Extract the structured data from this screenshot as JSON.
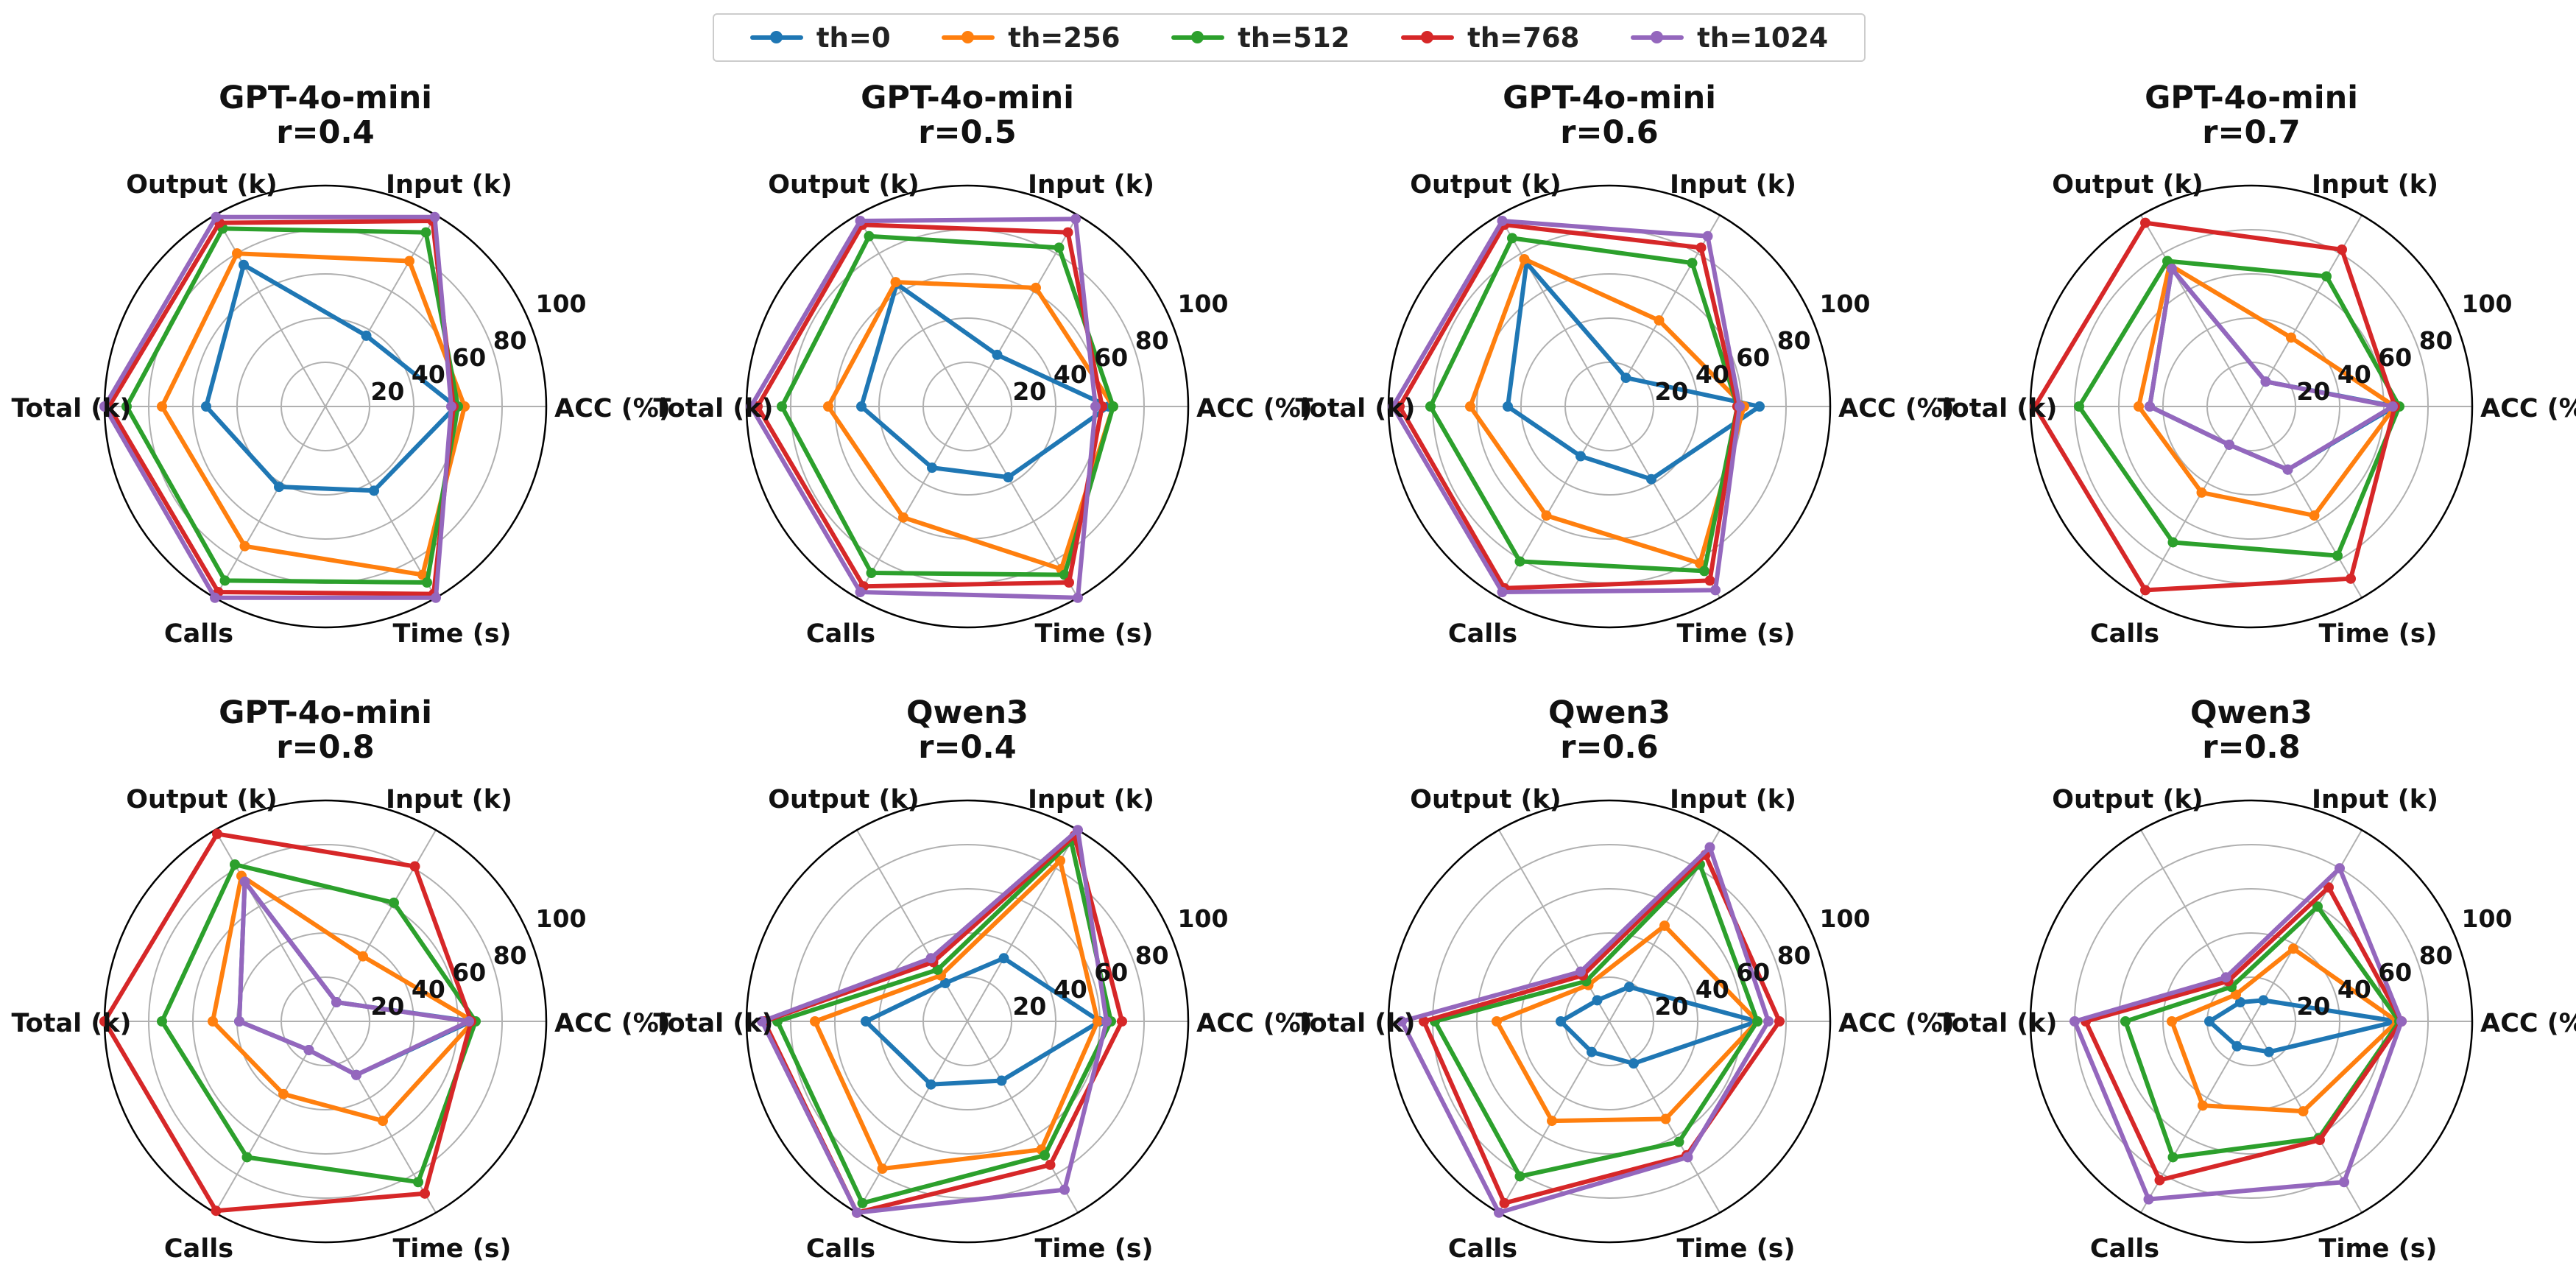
{
  "legend": {
    "items": [
      {
        "label": "th=0",
        "color": "#1f77b4"
      },
      {
        "label": "th=256",
        "color": "#ff7f0e"
      },
      {
        "label": "th=512",
        "color": "#2ca02c"
      },
      {
        "label": "th=768",
        "color": "#d62728"
      },
      {
        "label": "th=1024",
        "color": "#9467bd"
      }
    ]
  },
  "chart_data": {
    "type": "radar",
    "axes": [
      "ACC (%)",
      "Input (k)",
      "Output (k)",
      "Total (k)",
      "Calls",
      "Time (s)"
    ],
    "radial_ticks": [
      20,
      40,
      60,
      80,
      100
    ],
    "rlim": [
      0,
      100
    ],
    "series_names": [
      "th=0",
      "th=256",
      "th=512",
      "th=768",
      "th=1024"
    ],
    "colors": [
      "#1f77b4",
      "#ff7f0e",
      "#2ca02c",
      "#d62728",
      "#9467bd"
    ],
    "grid": true,
    "legend_position": "top-center",
    "subplots": [
      {
        "title": [
          "GPT-4o-mini",
          "r=0.4"
        ],
        "series": [
          {
            "name": "th=0",
            "values": [
              59,
              37,
              74,
              54,
              42,
              44
            ]
          },
          {
            "name": "th=256",
            "values": [
              63,
              76,
              80,
              74,
              73,
              88
            ]
          },
          {
            "name": "th=512",
            "values": [
              60,
              91,
              93,
              90,
              91,
              92
            ]
          },
          {
            "name": "th=768",
            "values": [
              58,
              97,
              96,
              98,
              97,
              98
            ]
          },
          {
            "name": "th=1024",
            "values": [
              57,
              99,
              99,
              100,
              100,
              100
            ]
          }
        ]
      },
      {
        "title": [
          "GPT-4o-mini",
          "r=0.5"
        ],
        "series": [
          {
            "name": "th=0",
            "values": [
              64,
              27,
              64,
              48,
              32,
              37
            ]
          },
          {
            "name": "th=256",
            "values": [
              66,
              62,
              65,
              63,
              58,
              85
            ]
          },
          {
            "name": "th=512",
            "values": [
              66,
              83,
              89,
              84,
              87,
              88
            ]
          },
          {
            "name": "th=768",
            "values": [
              61,
              91,
              95,
              95,
              94,
              92
            ]
          },
          {
            "name": "th=1024",
            "values": [
              58,
              98,
              97,
              98,
              97,
              100
            ]
          }
        ]
      },
      {
        "title": [
          "GPT-4o-mini",
          "r=0.6"
        ],
        "series": [
          {
            "name": "th=0",
            "values": [
              68,
              15,
              75,
              46,
              26,
              38
            ]
          },
          {
            "name": "th=256",
            "values": [
              61,
              45,
              77,
              63,
              57,
              82
            ]
          },
          {
            "name": "th=512",
            "values": [
              58,
              75,
              88,
              81,
              81,
              86
            ]
          },
          {
            "name": "th=768",
            "values": [
              58,
              83,
              95,
              95,
              95,
              91
            ]
          },
          {
            "name": "th=1024",
            "values": [
              59,
              89,
              97,
              98,
              97,
              96
            ]
          }
        ]
      },
      {
        "title": [
          "GPT-4o-mini",
          "r=0.7"
        ],
        "series": [
          {
            "name": "th=0",
            "values": [
              65,
              13,
              72,
              46,
              20,
              33
            ]
          },
          {
            "name": "th=256",
            "values": [
              65,
              36,
              74,
              51,
              45,
              57
            ]
          },
          {
            "name": "th=512",
            "values": [
              67,
              68,
              76,
              78,
              71,
              78
            ]
          },
          {
            "name": "th=768",
            "values": [
              65,
              82,
              96,
              98,
              96,
              90
            ]
          },
          {
            "name": "th=1024",
            "values": [
              64,
              13,
              72,
              46,
              20,
              33
            ]
          }
        ]
      },
      {
        "title": [
          "GPT-4o-mini",
          "r=0.8"
        ],
        "series": [
          {
            "name": "th=0",
            "values": [
              66,
              10,
              73,
              39,
              15,
              28
            ]
          },
          {
            "name": "th=256",
            "values": [
              67,
              34,
              76,
              51,
              38,
              52
            ]
          },
          {
            "name": "th=512",
            "values": [
              68,
              62,
              82,
              74,
              71,
              84
            ]
          },
          {
            "name": "th=768",
            "values": [
              66,
              81,
              98,
              100,
              99,
              90
            ]
          },
          {
            "name": "th=1024",
            "values": [
              65,
              10,
              73,
              39,
              15,
              28
            ]
          }
        ]
      },
      {
        "title": [
          "Qwen3",
          "r=0.4"
        ],
        "series": [
          {
            "name": "th=0",
            "values": [
              60,
              33,
              20,
              46,
              33,
              31
            ]
          },
          {
            "name": "th=256",
            "values": [
              59,
              84,
              24,
              69,
              77,
              67
            ]
          },
          {
            "name": "th=512",
            "values": [
              65,
              94,
              27,
              86,
              95,
              70
            ]
          },
          {
            "name": "th=768",
            "values": [
              70,
              97,
              31,
              92,
              100,
              75
            ]
          },
          {
            "name": "th=1024",
            "values": [
              63,
              100,
              33,
              93,
              100,
              88
            ]
          }
        ]
      },
      {
        "title": [
          "Qwen3",
          "r=0.6"
        ],
        "series": [
          {
            "name": "th=0",
            "values": [
              67,
              18,
              11,
              22,
              16,
              22
            ]
          },
          {
            "name": "th=256",
            "values": [
              67,
              50,
              19,
              51,
              52,
              51
            ]
          },
          {
            "name": "th=512",
            "values": [
              67,
              82,
              21,
              79,
              81,
              63
            ]
          },
          {
            "name": "th=768",
            "values": [
              77,
              87,
              24,
              84,
              95,
              70
            ]
          },
          {
            "name": "th=1024",
            "values": [
              72,
              91,
              26,
              94,
              100,
              71
            ]
          }
        ]
      },
      {
        "title": [
          "Qwen3",
          "r=0.8"
        ],
        "series": [
          {
            "name": "th=0",
            "values": [
              66,
              11,
              10,
              19,
              13,
              16
            ]
          },
          {
            "name": "th=256",
            "values": [
              66,
              38,
              14,
              36,
              44,
              47
            ]
          },
          {
            "name": "th=512",
            "values": [
              67,
              60,
              18,
              57,
              71,
              61
            ]
          },
          {
            "name": "th=768",
            "values": [
              68,
              70,
              21,
              75,
              83,
              62
            ]
          },
          {
            "name": "th=1024",
            "values": [
              68,
              80,
              23,
              80,
              93,
              84
            ]
          }
        ]
      }
    ]
  }
}
